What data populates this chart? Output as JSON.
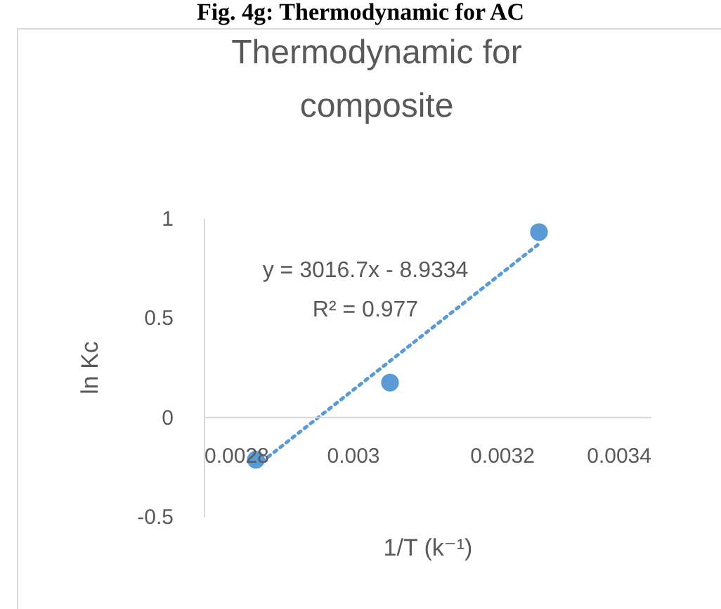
{
  "chart_data": {
    "type": "scatter",
    "title": "Thermodynamic for composite",
    "xlabel": "1/T (k⁻¹)",
    "ylabel": "ln Kc",
    "annotations": [
      "Fig. 4g: Thermodynamic for AC",
      "y = 3016.7x - 8.9334",
      "R² = 0.977"
    ],
    "xlim": [
      0.0028,
      0.0034
    ],
    "xticks": [
      0.0028,
      0.003,
      0.0032,
      0.0034
    ],
    "ylim": [
      -0.5,
      1
    ],
    "yticks": [
      -0.5,
      0,
      0.5,
      1
    ],
    "grid": false,
    "series": [
      {
        "type": "scatter",
        "marker": "circle",
        "color": "#5b9bd5",
        "x": [
          0.00287,
          0.00305,
          0.00325
        ],
        "values": [
          -0.216,
          0.172,
          0.929
        ]
      },
      {
        "type": "line",
        "marker": "none",
        "line_style": "dotted",
        "color": "#5b9bd5",
        "x": [
          0.00287,
          0.00325
        ],
        "values": [
          -0.25,
          0.87
        ]
      }
    ]
  }
}
